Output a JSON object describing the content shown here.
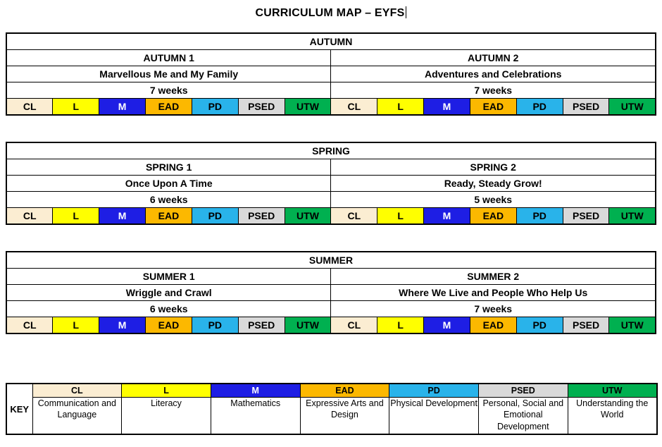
{
  "title": "CURRICULUM MAP – EYFS",
  "key_label": "KEY",
  "subjects": [
    {
      "code": "CL",
      "name": "Communication and Language",
      "color": "#FBEDD2",
      "text_color": "#000000"
    },
    {
      "code": "L",
      "name": "Literacy",
      "color": "#FFFF00",
      "text_color": "#000000"
    },
    {
      "code": "M",
      "name": "Mathematics",
      "color": "#1E1EE4",
      "text_color": "#FFFFFF"
    },
    {
      "code": "EAD",
      "name": "Expressive Arts and Design",
      "color": "#FCB800",
      "text_color": "#000000"
    },
    {
      "code": "PD",
      "name": "Physical Development",
      "color": "#29B3EA",
      "text_color": "#000000"
    },
    {
      "code": "PSED",
      "name": "Personal, Social and Emotional Development",
      "color": "#D9D9D9",
      "text_color": "#000000"
    },
    {
      "code": "UTW",
      "name": "Understanding the World",
      "color": "#00B050",
      "text_color": "#000000"
    }
  ],
  "terms": [
    {
      "name": "AUTUMN",
      "halves": [
        {
          "label": "AUTUMN 1",
          "theme": "Marvellous Me and My Family",
          "duration": "7 weeks"
        },
        {
          "label": "AUTUMN 2",
          "theme": "Adventures and Celebrations",
          "duration": "7 weeks"
        }
      ]
    },
    {
      "name": "SPRING",
      "halves": [
        {
          "label": "SPRING 1",
          "theme": "Once Upon A Time",
          "duration": "6 weeks"
        },
        {
          "label": "SPRING 2",
          "theme": "Ready, Steady Grow!",
          "duration": "5 weeks"
        }
      ]
    },
    {
      "name": "SUMMER",
      "halves": [
        {
          "label": "SUMMER 1",
          "theme": "Wriggle and Crawl",
          "duration": "6 weeks"
        },
        {
          "label": "SUMMER 2",
          "theme": "Where We Live and People Who Help Us",
          "duration": "7 weeks"
        }
      ]
    }
  ]
}
